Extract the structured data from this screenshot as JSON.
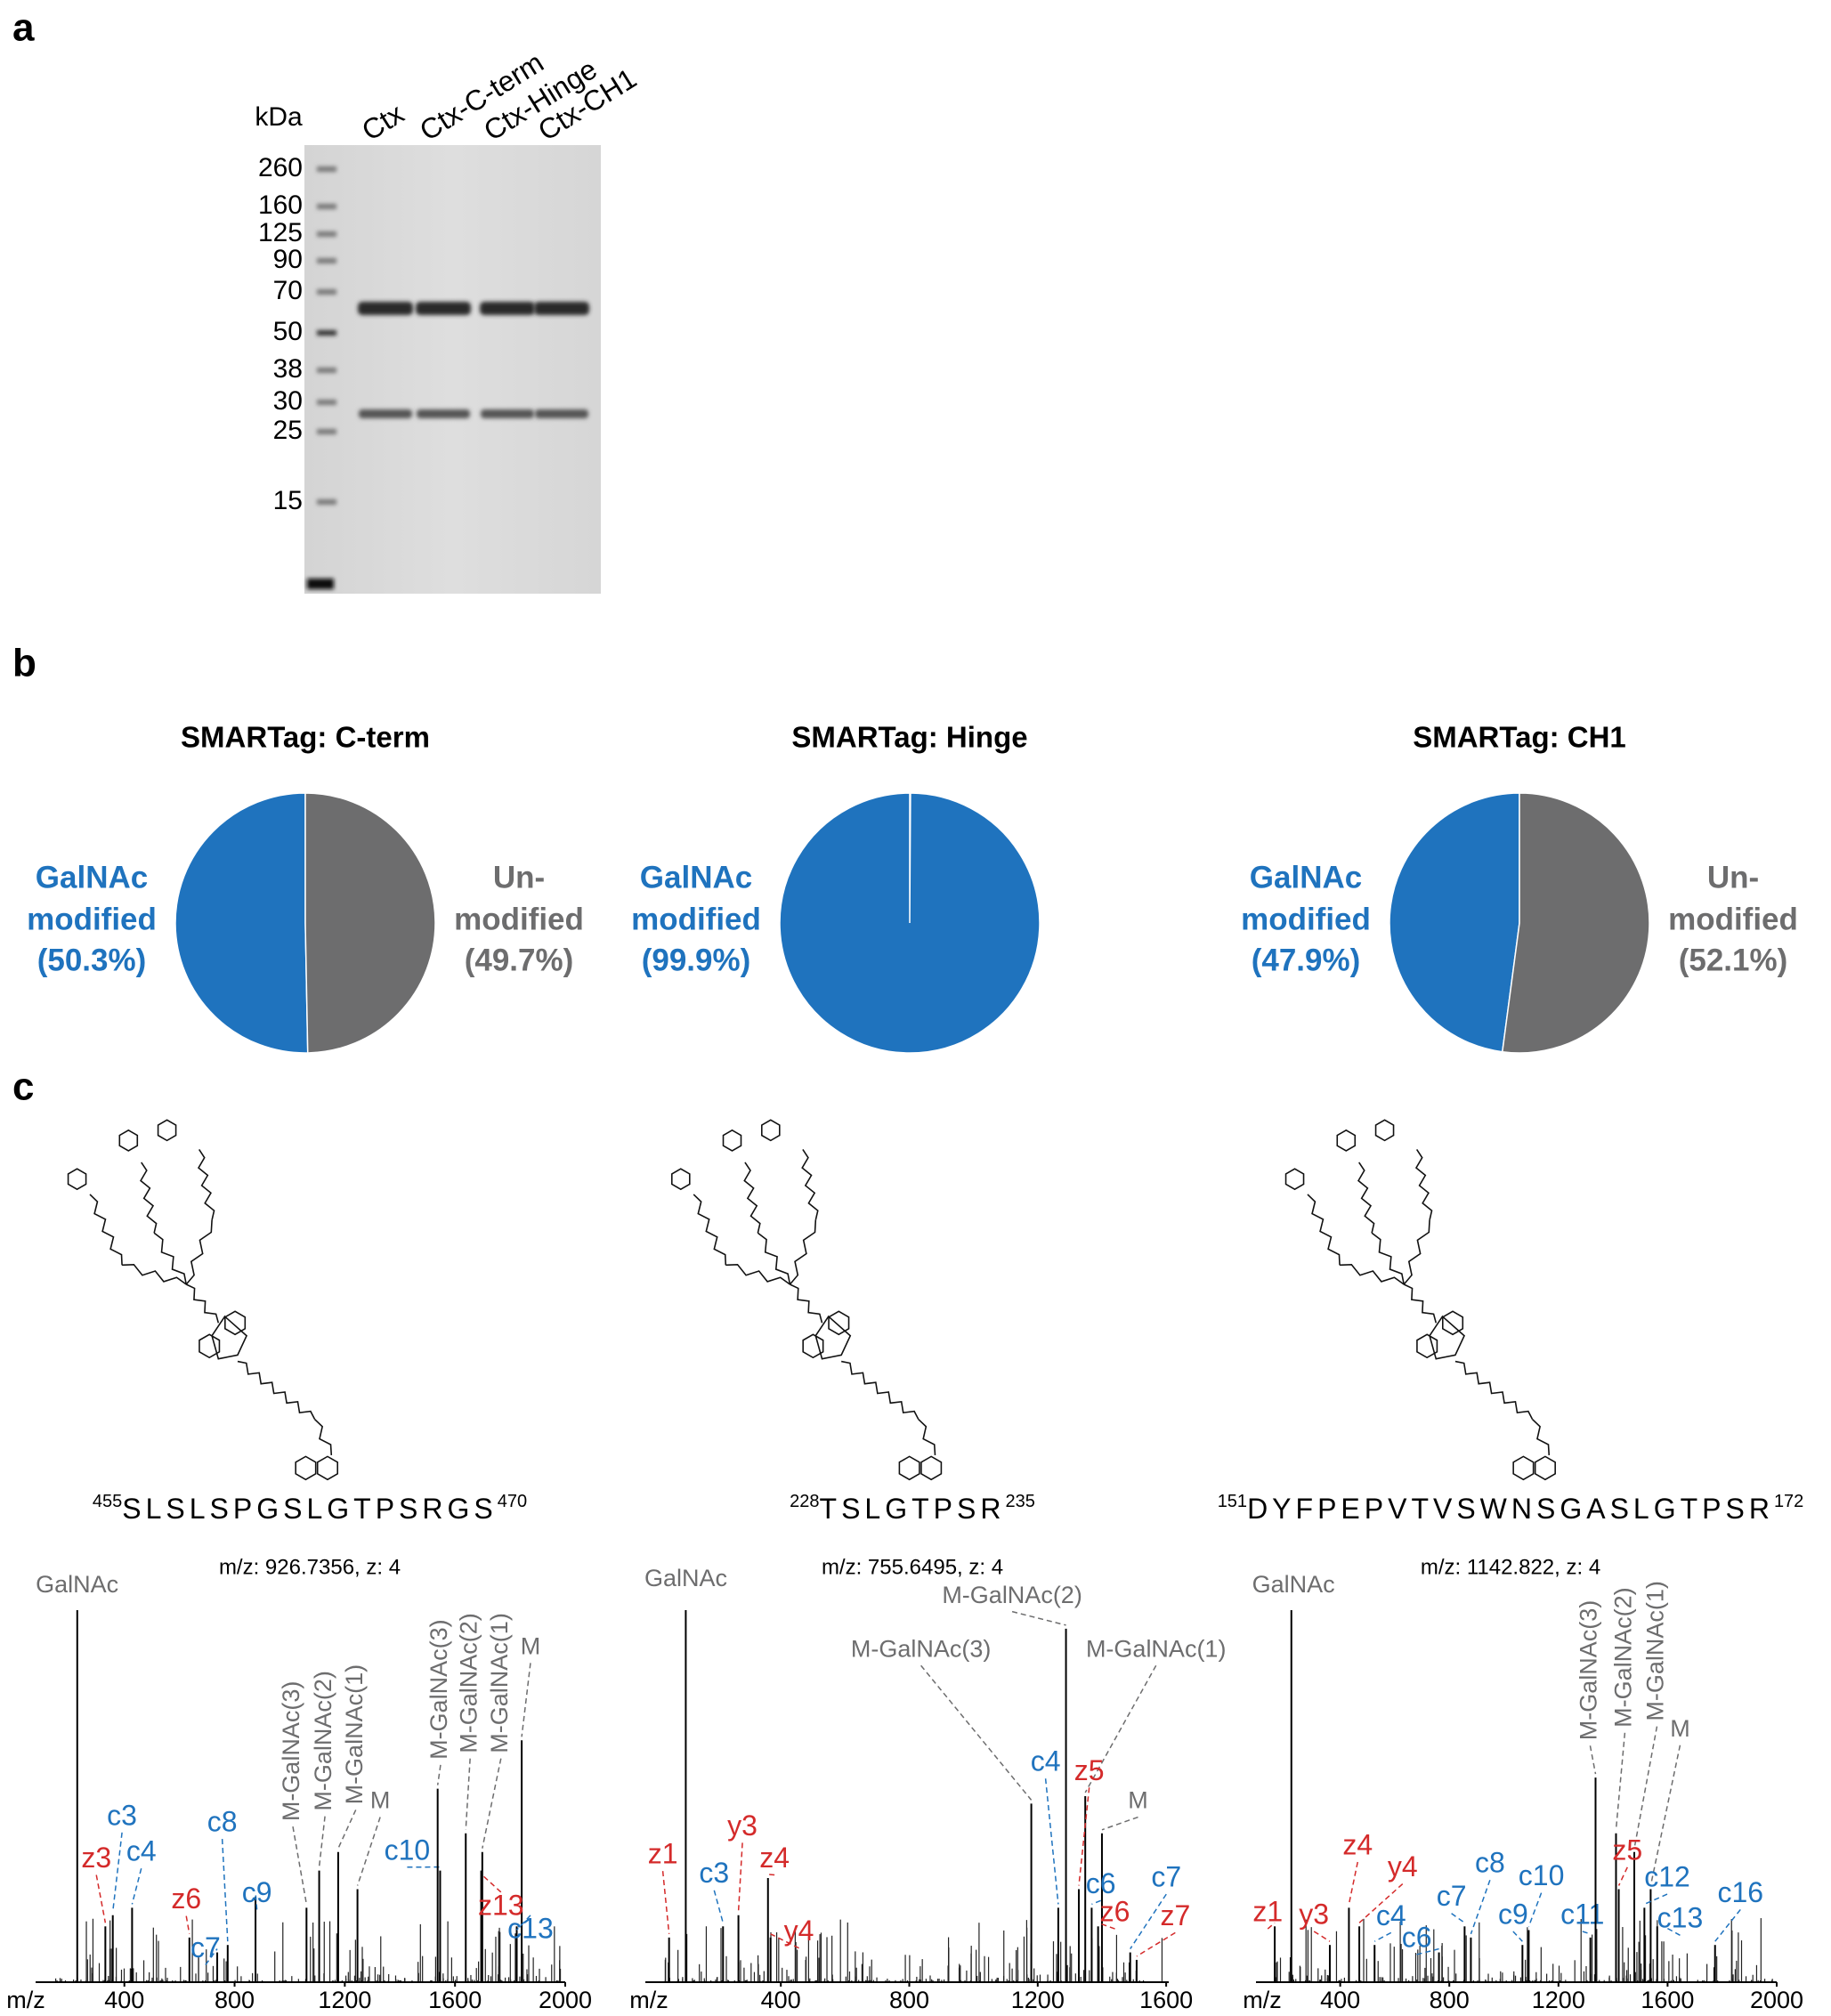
{
  "panel_labels": [
    "a",
    "b",
    "c"
  ],
  "gel": {
    "unit": "kDa",
    "lanes": [
      "Ctx",
      "Ctx-C-term",
      "Ctx-Hinge",
      "Ctx-CH1"
    ],
    "markers": [
      260,
      160,
      125,
      90,
      70,
      50,
      38,
      30,
      25,
      15
    ]
  },
  "chart_data": [
    {
      "type": "pie",
      "title": "SMARTag: C-term",
      "labels": [
        [
          "GalNAc",
          "modified"
        ],
        [
          "Un-",
          "modified"
        ]
      ],
      "values": [
        50.3,
        49.7
      ],
      "value_labels": [
        "(50.3%)",
        "(49.7%)"
      ],
      "colors": [
        "#1f73be",
        "#6d6d6e"
      ]
    },
    {
      "type": "pie",
      "title": "SMARTag: Hinge",
      "labels": [
        [
          "GalNAc",
          "modified"
        ]
      ],
      "values": [
        99.9
      ],
      "value_labels": [
        "(99.9%)"
      ],
      "colors": [
        "#1f73be"
      ]
    },
    {
      "type": "pie",
      "title": "SMARTag: CH1",
      "labels": [
        [
          "GalNAc",
          "modified"
        ],
        [
          "Un-",
          "modified"
        ]
      ],
      "values": [
        47.9,
        52.1
      ],
      "value_labels": [
        "(47.9%)",
        "(52.1%)"
      ],
      "colors": [
        "#1f73be",
        "#6d6d6e"
      ]
    }
  ],
  "panel_c": {
    "columns": [
      {
        "sequence": {
          "start": 455,
          "residues": "SLSLSPGSLGTPSRGS",
          "end": 470
        },
        "precursor": "m/z: 926.7356, z: 4",
        "spectrum": {
          "xlabel": "m/z",
          "xlim": [
            136,
            2000
          ],
          "xticks": [
            400,
            800,
            1200,
            1600,
            2000
          ],
          "ylim": [
            0,
            100
          ],
          "annotations": [
            {
              "label": "GalNAc",
              "mz": 229,
              "h": 100
            },
            {
              "label": "z3",
              "mz": 331,
              "h": 15
            },
            {
              "label": "c3",
              "mz": 358,
              "h": 18
            },
            {
              "label": "c4",
              "mz": 428,
              "h": 20
            },
            {
              "label": "z6",
              "mz": 636,
              "h": 12
            },
            {
              "label": "c7",
              "mz": 737,
              "h": 8
            },
            {
              "label": "c8",
              "mz": 775,
              "h": 10
            },
            {
              "label": "c9",
              "mz": 876,
              "h": 23
            },
            {
              "label": "M-GalNAc(3)",
              "mz": 1061,
              "h": 20
            },
            {
              "label": "M-GalNAc(2)",
              "mz": 1107,
              "h": 30
            },
            {
              "label": "M-GalNAc(1)",
              "mz": 1176,
              "h": 35
            },
            {
              "label": "M",
              "mz": 1246,
              "h": 25
            },
            {
              "label": "c10",
              "mz": 1546,
              "h": 30
            },
            {
              "label": "M-GalNAc(3)",
              "mz": 1537,
              "h": 52
            },
            {
              "label": "M-GalNAc(2)",
              "mz": 1639,
              "h": 40
            },
            {
              "label": "M-GalNAc(1)",
              "mz": 1699,
              "h": 35
            },
            {
              "label": "M",
              "mz": 1842,
              "h": 65
            },
            {
              "label": "z13",
              "mz": 1695,
              "h": 30
            },
            {
              "label": "c13",
              "mz": 1824,
              "h": 15
            }
          ]
        }
      },
      {
        "sequence": {
          "start": 228,
          "residues": "TSLGTPSR",
          "end": 235
        },
        "precursor": "m/z: 755.6495, z: 4",
        "spectrum": {
          "xlabel": "m/z",
          "xlim": [
            28,
            1608
          ],
          "xticks": [
            400,
            800,
            1200,
            1600
          ],
          "ylim": [
            0,
            100
          ],
          "annotations": [
            {
              "label": "GalNAc",
              "mz": 104,
              "h": 100
            },
            {
              "label": "z1",
              "mz": 52,
              "h": 12
            },
            {
              "label": "c3",
              "mz": 220,
              "h": 15
            },
            {
              "label": "y3",
              "mz": 268,
              "h": 18
            },
            {
              "label": "z4",
              "mz": 360,
              "h": 28
            },
            {
              "label": "y4",
              "mz": 368,
              "h": 12
            },
            {
              "label": "M-GalNAc(3)",
              "mz": 1180,
              "h": 48
            },
            {
              "label": "M-GalNAc(2)",
              "mz": 1288,
              "h": 95
            },
            {
              "label": "M-GalNAc(1)",
              "mz": 1348,
              "h": 50
            },
            {
              "label": "c4",
              "mz": 1264,
              "h": 20
            },
            {
              "label": "z5",
              "mz": 1328,
              "h": 25
            },
            {
              "label": "M",
              "mz": 1400,
              "h": 40
            },
            {
              "label": "c6",
              "mz": 1368,
              "h": 20
            },
            {
              "label": "c7",
              "mz": 1488,
              "h": 8
            },
            {
              "label": "z6",
              "mz": 1388,
              "h": 15
            },
            {
              "label": "z7",
              "mz": 1508,
              "h": 6
            }
          ]
        }
      },
      {
        "sequence": {
          "start": 151,
          "residues": "DYFPEPVTVSWNSGASLGTPSR",
          "end": 172
        },
        "precursor": "m/z: 1142.822, z: 4",
        "spectrum": {
          "xlabel": "m/z",
          "xlim": [
            150,
            2000
          ],
          "xticks": [
            400,
            800,
            1200,
            1600,
            2000
          ],
          "ylim": [
            0,
            100
          ],
          "annotations": [
            {
              "label": "GalNAc",
              "mz": 221,
              "h": 100
            },
            {
              "label": "z1",
              "mz": 160,
              "h": 15
            },
            {
              "label": "y3",
              "mz": 362,
              "h": 10
            },
            {
              "label": "z4",
              "mz": 432,
              "h": 20
            },
            {
              "label": "y4",
              "mz": 470,
              "h": 15
            },
            {
              "label": "c4",
              "mz": 526,
              "h": 10
            },
            {
              "label": "c6",
              "mz": 762,
              "h": 8
            },
            {
              "label": "c7",
              "mz": 856,
              "h": 15
            },
            {
              "label": "c8",
              "mz": 879,
              "h": 12
            },
            {
              "label": "c9",
              "mz": 1068,
              "h": 10
            },
            {
              "label": "c10",
              "mz": 1091,
              "h": 14
            },
            {
              "label": "c11",
              "mz": 1317,
              "h": 12
            },
            {
              "label": "M-GalNAc(3)",
              "mz": 1336,
              "h": 55
            },
            {
              "label": "M-GalNAc(2)",
              "mz": 1411,
              "h": 40
            },
            {
              "label": "M-GalNAc(1)",
              "mz": 1478,
              "h": 35
            },
            {
              "label": "M",
              "mz": 1538,
              "h": 25
            },
            {
              "label": "z5",
              "mz": 1421,
              "h": 25
            },
            {
              "label": "c12",
              "mz": 1515,
              "h": 20
            },
            {
              "label": "c13",
              "mz": 1562,
              "h": 15
            },
            {
              "label": "c16",
              "mz": 1774,
              "h": 10
            }
          ]
        }
      }
    ]
  }
}
